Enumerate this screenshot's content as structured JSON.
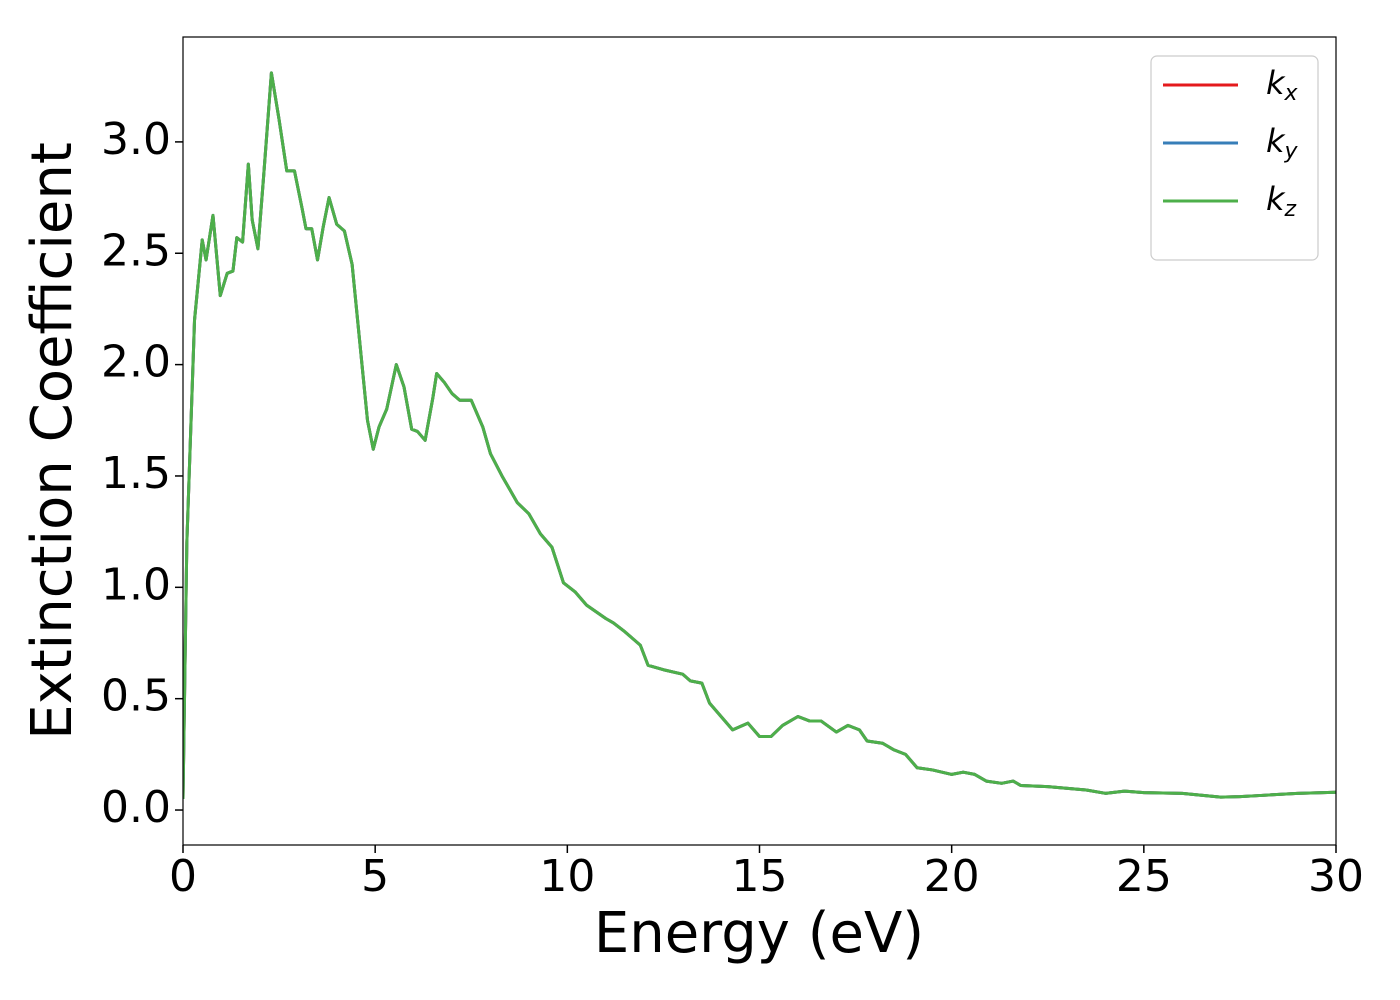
{
  "chart_data": {
    "type": "line",
    "x_label": "Energy (eV)",
    "y_label": "Extinction Coefficient",
    "x": [
      0,
      0.1,
      0.3,
      0.5,
      0.6,
      0.78,
      0.97,
      1.15,
      1.3,
      1.4,
      1.55,
      1.7,
      1.8,
      1.95,
      2.1,
      2.3,
      2.5,
      2.7,
      2.9,
      3.1,
      3.2,
      3.35,
      3.5,
      3.65,
      3.8,
      4.0,
      4.2,
      4.4,
      4.6,
      4.8,
      4.95,
      5.1,
      5.3,
      5.55,
      5.75,
      5.95,
      6.1,
      6.3,
      6.5,
      6.6,
      6.8,
      7.0,
      7.2,
      7.5,
      7.8,
      8.0,
      8.3,
      8.7,
      9.0,
      9.3,
      9.6,
      9.9,
      10.2,
      10.5,
      11.0,
      11.2,
      11.5,
      11.9,
      12.1,
      12.5,
      13.0,
      13.2,
      13.5,
      13.7,
      14.0,
      14.3,
      14.7,
      15.0,
      15.3,
      15.6,
      16.0,
      16.3,
      16.6,
      17.0,
      17.3,
      17.6,
      17.8,
      18.2,
      18.5,
      18.8,
      19.1,
      19.5,
      20.0,
      20.3,
      20.6,
      20.9,
      21.3,
      21.6,
      21.8,
      22.5,
      23.5,
      24.0,
      24.5,
      25.0,
      26.0,
      27.0,
      27.5,
      28.0,
      29.0,
      30.0
    ],
    "series": [
      {
        "name": "kx",
        "color": "#e41a1c",
        "values": [
          0.05,
          1.2,
          2.2,
          2.56,
          2.47,
          2.67,
          2.31,
          2.41,
          2.42,
          2.57,
          2.55,
          2.9,
          2.65,
          2.52,
          2.85,
          3.31,
          3.1,
          2.87,
          2.87,
          2.7,
          2.61,
          2.61,
          2.47,
          2.62,
          2.75,
          2.63,
          2.6,
          2.45,
          2.1,
          1.75,
          1.62,
          1.72,
          1.8,
          2.0,
          1.9,
          1.71,
          1.7,
          1.66,
          1.85,
          1.96,
          1.92,
          1.87,
          1.84,
          1.84,
          1.72,
          1.6,
          1.5,
          1.38,
          1.33,
          1.24,
          1.18,
          1.02,
          0.98,
          0.92,
          0.86,
          0.84,
          0.8,
          0.74,
          0.65,
          0.63,
          0.61,
          0.58,
          0.57,
          0.48,
          0.42,
          0.36,
          0.39,
          0.33,
          0.33,
          0.38,
          0.42,
          0.4,
          0.4,
          0.35,
          0.38,
          0.36,
          0.31,
          0.3,
          0.27,
          0.25,
          0.19,
          0.18,
          0.16,
          0.17,
          0.16,
          0.13,
          0.12,
          0.13,
          0.11,
          0.105,
          0.09,
          0.075,
          0.085,
          0.078,
          0.075,
          0.058,
          0.06,
          0.065,
          0.075,
          0.08
        ]
      },
      {
        "name": "ky",
        "color": "#377eb8",
        "values": [
          0.05,
          1.2,
          2.2,
          2.56,
          2.47,
          2.67,
          2.31,
          2.41,
          2.42,
          2.57,
          2.55,
          2.9,
          2.65,
          2.52,
          2.85,
          3.31,
          3.1,
          2.87,
          2.87,
          2.7,
          2.61,
          2.61,
          2.47,
          2.62,
          2.75,
          2.63,
          2.6,
          2.45,
          2.1,
          1.75,
          1.62,
          1.72,
          1.8,
          2.0,
          1.9,
          1.71,
          1.7,
          1.66,
          1.85,
          1.96,
          1.92,
          1.87,
          1.84,
          1.84,
          1.72,
          1.6,
          1.5,
          1.38,
          1.33,
          1.24,
          1.18,
          1.02,
          0.98,
          0.92,
          0.86,
          0.84,
          0.8,
          0.74,
          0.65,
          0.63,
          0.61,
          0.58,
          0.57,
          0.48,
          0.42,
          0.36,
          0.39,
          0.33,
          0.33,
          0.38,
          0.42,
          0.4,
          0.4,
          0.35,
          0.38,
          0.36,
          0.31,
          0.3,
          0.27,
          0.25,
          0.19,
          0.18,
          0.16,
          0.17,
          0.16,
          0.13,
          0.12,
          0.13,
          0.11,
          0.105,
          0.09,
          0.075,
          0.085,
          0.078,
          0.075,
          0.058,
          0.06,
          0.065,
          0.075,
          0.08
        ]
      },
      {
        "name": "kz",
        "color": "#4daf4a",
        "values": [
          0.05,
          1.2,
          2.2,
          2.56,
          2.47,
          2.67,
          2.31,
          2.41,
          2.42,
          2.57,
          2.55,
          2.9,
          2.65,
          2.52,
          2.85,
          3.31,
          3.1,
          2.87,
          2.87,
          2.7,
          2.61,
          2.61,
          2.47,
          2.62,
          2.75,
          2.63,
          2.6,
          2.45,
          2.1,
          1.75,
          1.62,
          1.72,
          1.8,
          2.0,
          1.9,
          1.71,
          1.7,
          1.66,
          1.85,
          1.96,
          1.92,
          1.87,
          1.84,
          1.84,
          1.72,
          1.6,
          1.5,
          1.38,
          1.33,
          1.24,
          1.18,
          1.02,
          0.98,
          0.92,
          0.86,
          0.84,
          0.8,
          0.74,
          0.65,
          0.63,
          0.61,
          0.58,
          0.57,
          0.48,
          0.42,
          0.36,
          0.39,
          0.33,
          0.33,
          0.38,
          0.42,
          0.4,
          0.4,
          0.35,
          0.38,
          0.36,
          0.31,
          0.3,
          0.27,
          0.25,
          0.19,
          0.18,
          0.16,
          0.17,
          0.16,
          0.13,
          0.12,
          0.13,
          0.11,
          0.105,
          0.09,
          0.075,
          0.085,
          0.078,
          0.075,
          0.058,
          0.06,
          0.065,
          0.075,
          0.08
        ]
      }
    ],
    "xlim": [
      0,
      30
    ],
    "xticks": [
      0,
      5,
      10,
      15,
      20,
      25,
      30
    ],
    "ylim": [
      -0.157,
      3.471
    ],
    "yticks": [
      {
        "value": 0,
        "label": "0.0"
      },
      0.5,
      {
        "value": 1,
        "label": "1.0"
      },
      1.5,
      {
        "value": 2,
        "label": "2.0"
      },
      2.5,
      {
        "value": 3,
        "label": "3.0"
      }
    ],
    "grid": false,
    "legend": "upper right"
  }
}
